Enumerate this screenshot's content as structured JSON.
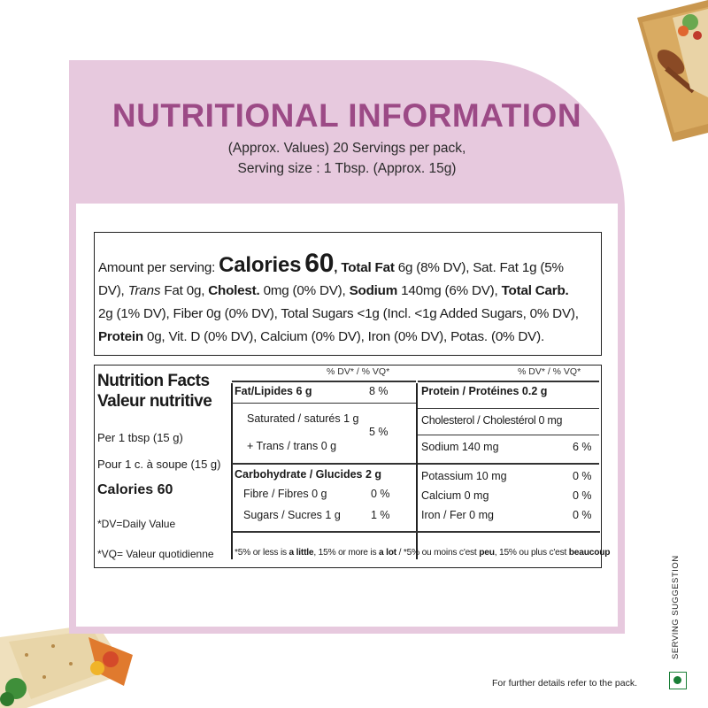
{
  "header": {
    "title": "NUTRITIONAL INFORMATION",
    "subtitle_line1": "(Approx. Values) 20 Servings per pack,",
    "subtitle_line2": "Serving size : 1 Tbsp. (Approx. 15g)"
  },
  "linear": {
    "amount_prefix": "Amount per serving: ",
    "calories_label": "Calories",
    "calories_value": "60",
    "total_fat_label": "Total Fat",
    "total_fat_value": " 6g (8% DV), Sat. Fat 1g (5%",
    "line2_a": "DV), ",
    "trans_label": "Trans",
    "trans_value": " Fat 0g, ",
    "cholest_label": "Cholest.",
    "cholest_value": " 0mg (0% DV), ",
    "sodium_label": "Sodium",
    "sodium_value": " 140mg (6% DV), ",
    "total_carb_label": "Total Carb.",
    "line3": "2g (1% DV), Fiber 0g (0% DV), Total Sugars <1g (Incl. <1g Added Sugars, 0% DV),",
    "protein_label": "Protein",
    "line4": " 0g, Vit. D (0% DV), Calcium (0% DV), Iron (0% DV), Potas. (0% DV)."
  },
  "facts": {
    "title_en": "Nutrition Facts",
    "title_fr": "Valeur nutritive",
    "per_en": "Per 1 tbsp (15 g)",
    "per_fr": "Pour 1 c. à soupe (15 g)",
    "calories": "Calories 60",
    "dv_def": "*DV=Daily Value",
    "vq_def": "*VQ= Valeur quotidienne",
    "dv_header": "% DV* / % VQ*",
    "fat": "Fat/Lipides 6 g",
    "fat_dv": "8 %",
    "saturated": "Saturated / saturés 1 g",
    "trans": "+ Trans / trans 0 g",
    "sat_trans_dv": "5 %",
    "carb": "Carbohydrate / Glucides 2 g",
    "fibre": "Fibre / Fibres 0 g",
    "fibre_dv": "0 %",
    "sugars": "Sugars / Sucres 1 g",
    "sugars_dv": "1 %",
    "protein": "Protein / Protéines 0.2 g",
    "cholesterol": "Cholesterol / Cholestérol 0 mg",
    "sodium": "Sodium 140 mg",
    "sodium_dv": "6 %",
    "potassium": "Potassium 10 mg",
    "potassium_dv": "0 %",
    "calcium": "Calcium 0 mg",
    "calcium_dv": "0 %",
    "iron": "Iron / Fer 0 mg",
    "iron_dv": "0 %",
    "footnote_a": "*5% or less is ",
    "footnote_little": "a little",
    "footnote_b": ", 15% or more is ",
    "footnote_lot": "a lot",
    "footnote_c": " / *5% ou moins c'est ",
    "footnote_peu": "peu",
    "footnote_d": ", 15% ou plus c'est ",
    "footnote_beaucoup": "beaucoup"
  },
  "side_label": "SERVING SUGGESTION",
  "bottom_note": "For further details refer to the pack.",
  "colors": {
    "panel": "#e7c9de",
    "title": "#9c4a86",
    "veg_mark": "#1a7f37"
  }
}
